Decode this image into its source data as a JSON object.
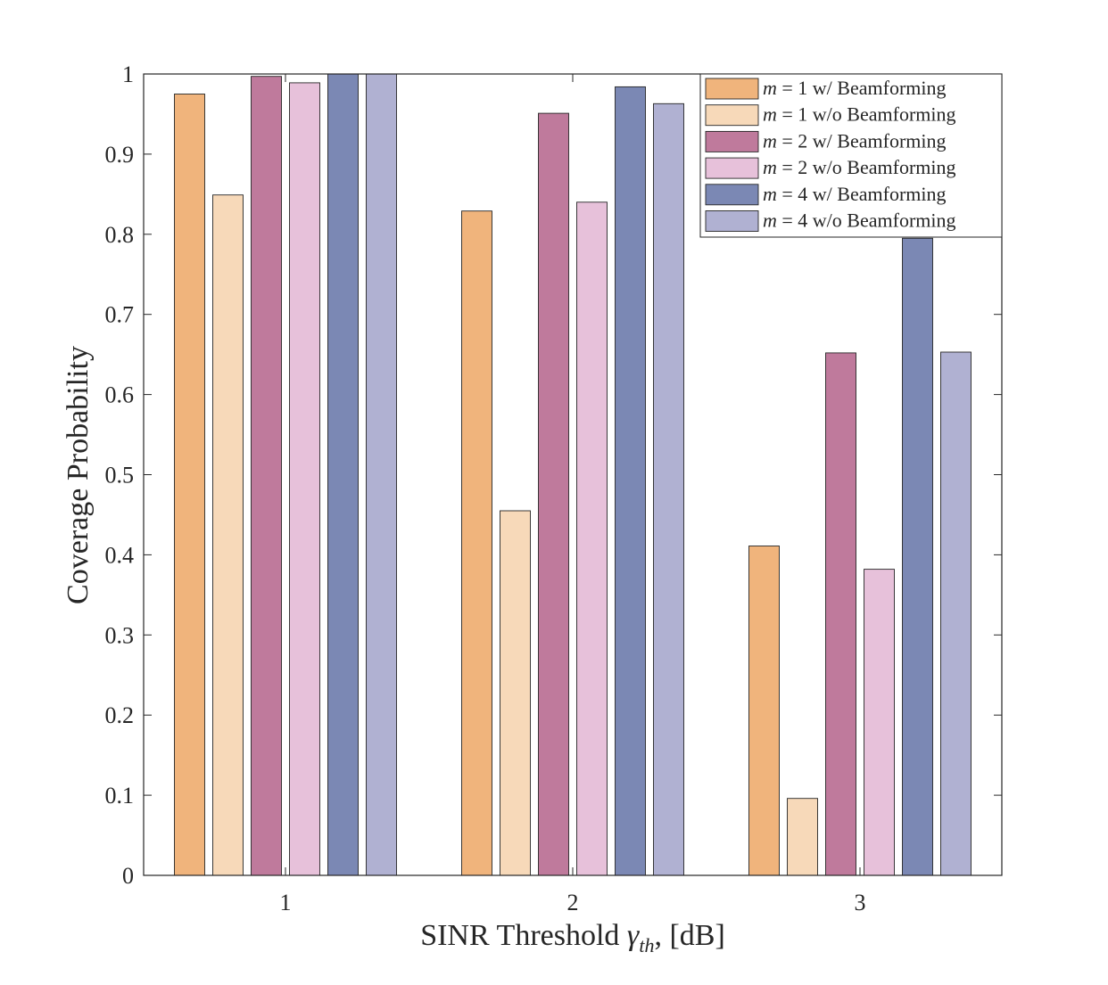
{
  "chart_data": {
    "type": "bar",
    "title": "",
    "xlabel_main": "SINR Threshold ",
    "xlabel_symbol": "γ",
    "xlabel_sub": "th",
    "xlabel_unit": ", [dB]",
    "ylabel": "Coverage Probability",
    "categories": [
      "1",
      "2",
      "3"
    ],
    "ylim": [
      0,
      1
    ],
    "yticks": [
      "0",
      "0.1",
      "0.2",
      "0.3",
      "0.4",
      "0.5",
      "0.6",
      "0.7",
      "0.8",
      "0.9",
      "1"
    ],
    "grid": false,
    "legend_position": "top-right",
    "series": [
      {
        "name": "m = 1 w/ Beamforming",
        "m": "m",
        "rest": " = 1 w/ Beamforming",
        "color": "#F0B47C",
        "values": [
          0.975,
          0.829,
          0.411
        ]
      },
      {
        "name": "m = 1 w/o Beamforming",
        "m": "m",
        "rest": " = 1 w/o Beamforming",
        "color": "#F7D9B9",
        "values": [
          0.849,
          0.455,
          0.096
        ]
      },
      {
        "name": "m = 2 w/ Beamforming",
        "m": "m",
        "rest": " = 2 w/ Beamforming",
        "color": "#BF7A9C",
        "values": [
          0.997,
          0.951,
          0.652
        ]
      },
      {
        "name": "m = 2 w/o Beamforming",
        "m": "m",
        "rest": " = 2 w/o Beamforming",
        "color": "#E7C1DA",
        "values": [
          0.989,
          0.84,
          0.382
        ]
      },
      {
        "name": "m = 4 w/ Beamforming",
        "m": "m",
        "rest": " = 4 w/ Beamforming",
        "color": "#7B88B4",
        "values": [
          1.0,
          0.984,
          0.795
        ]
      },
      {
        "name": "m = 4 w/o Beamforming",
        "m": "m",
        "rest": " = 4 w/o Beamforming",
        "color": "#B0B1D2",
        "values": [
          1.0,
          0.963,
          0.653
        ]
      }
    ]
  }
}
